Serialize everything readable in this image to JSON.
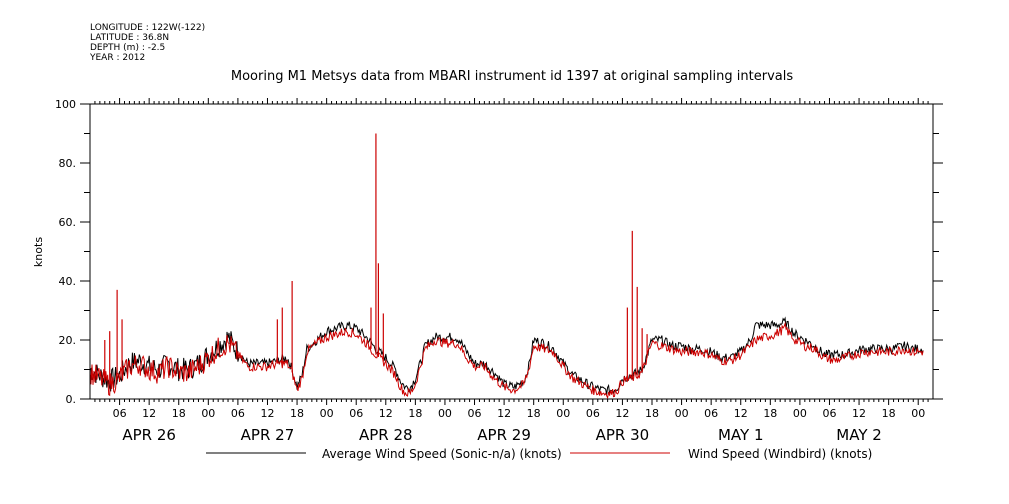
{
  "header": {
    "longitude": "LONGITUDE : 122W(-122)",
    "latitude": "LATITUDE : 36.8N",
    "depth": "DEPTH (m) : -2.5",
    "year": "YEAR : 2012"
  },
  "chart_data": {
    "type": "line",
    "title": "Mooring M1 Metsys data from MBARI instrument id 1397 at original sampling intervals",
    "ylabel": "knots",
    "xlabel": "",
    "ylim": [
      0,
      100
    ],
    "yticks": [
      0,
      20,
      40,
      60,
      80,
      100
    ],
    "ytick_labels": [
      "0.",
      "20.",
      "40.",
      "60.",
      "80.",
      "100"
    ],
    "xlim_hours": [
      0,
      171
    ],
    "hour_ticks": [
      {
        "h": 6,
        "label": "06"
      },
      {
        "h": 12,
        "label": "12"
      },
      {
        "h": 18,
        "label": "18"
      },
      {
        "h": 24,
        "label": "00"
      },
      {
        "h": 30,
        "label": "06"
      },
      {
        "h": 36,
        "label": "12"
      },
      {
        "h": 42,
        "label": "18"
      },
      {
        "h": 48,
        "label": "00"
      },
      {
        "h": 54,
        "label": "06"
      },
      {
        "h": 60,
        "label": "12"
      },
      {
        "h": 66,
        "label": "18"
      },
      {
        "h": 72,
        "label": "00"
      },
      {
        "h": 78,
        "label": "06"
      },
      {
        "h": 84,
        "label": "12"
      },
      {
        "h": 90,
        "label": "18"
      },
      {
        "h": 96,
        "label": "00"
      },
      {
        "h": 102,
        "label": "06"
      },
      {
        "h": 108,
        "label": "12"
      },
      {
        "h": 114,
        "label": "18"
      },
      {
        "h": 120,
        "label": "00"
      },
      {
        "h": 126,
        "label": "06"
      },
      {
        "h": 132,
        "label": "12"
      },
      {
        "h": 138,
        "label": "18"
      },
      {
        "h": 144,
        "label": "00"
      },
      {
        "h": 150,
        "label": "06"
      },
      {
        "h": 156,
        "label": "12"
      },
      {
        "h": 162,
        "label": "18"
      },
      {
        "h": 168,
        "label": "00"
      }
    ],
    "day_labels": [
      {
        "h": 12,
        "label": "APR 26"
      },
      {
        "h": 36,
        "label": "APR 27"
      },
      {
        "h": 60,
        "label": "APR 28"
      },
      {
        "h": 84,
        "label": "APR 29"
      },
      {
        "h": 108,
        "label": "APR 30"
      },
      {
        "h": 132,
        "label": "MAY  1"
      },
      {
        "h": 156,
        "label": "MAY  2"
      }
    ],
    "series": [
      {
        "name": "Average Wind Speed (Sonic-n/a) (knots)",
        "color": "#000000",
        "points": [
          [
            0,
            10
          ],
          [
            2,
            8
          ],
          [
            4,
            6
          ],
          [
            6,
            8
          ],
          [
            8,
            12
          ],
          [
            10,
            13
          ],
          [
            12,
            11
          ],
          [
            14,
            10
          ],
          [
            16,
            12
          ],
          [
            18,
            10
          ],
          [
            20,
            10
          ],
          [
            22,
            12
          ],
          [
            24,
            15
          ],
          [
            26,
            18
          ],
          [
            28,
            21
          ],
          [
            30,
            16
          ],
          [
            32,
            12
          ],
          [
            34,
            12
          ],
          [
            36,
            12
          ],
          [
            38,
            13
          ],
          [
            40,
            14
          ],
          [
            41,
            10
          ],
          [
            42,
            4
          ],
          [
            43,
            8
          ],
          [
            44,
            17
          ],
          [
            46,
            20
          ],
          [
            48,
            23
          ],
          [
            50,
            24
          ],
          [
            52,
            25
          ],
          [
            54,
            24
          ],
          [
            56,
            21
          ],
          [
            58,
            17
          ],
          [
            60,
            14
          ],
          [
            62,
            10
          ],
          [
            63,
            6
          ],
          [
            64,
            4
          ],
          [
            65,
            4
          ],
          [
            66,
            7
          ],
          [
            67,
            12
          ],
          [
            68,
            18
          ],
          [
            70,
            21
          ],
          [
            72,
            21
          ],
          [
            74,
            21
          ],
          [
            75,
            20
          ],
          [
            76,
            17
          ],
          [
            78,
            12
          ],
          [
            80,
            12
          ],
          [
            82,
            9
          ],
          [
            84,
            5
          ],
          [
            86,
            4
          ],
          [
            88,
            6
          ],
          [
            89,
            11
          ],
          [
            90,
            20
          ],
          [
            92,
            19
          ],
          [
            94,
            17
          ],
          [
            96,
            12
          ],
          [
            98,
            8
          ],
          [
            100,
            6
          ],
          [
            102,
            4
          ],
          [
            104,
            3
          ],
          [
            106,
            3
          ],
          [
            107,
            4
          ],
          [
            108,
            7
          ],
          [
            110,
            8
          ],
          [
            112,
            10
          ],
          [
            114,
            20
          ],
          [
            116,
            20
          ],
          [
            118,
            18
          ],
          [
            120,
            18
          ],
          [
            122,
            17
          ],
          [
            124,
            17
          ],
          [
            126,
            16
          ],
          [
            128,
            14
          ],
          [
            130,
            14
          ],
          [
            132,
            16
          ],
          [
            134,
            20
          ],
          [
            135,
            25
          ],
          [
            139,
            25
          ],
          [
            141,
            26
          ],
          [
            143,
            22
          ],
          [
            145,
            20
          ],
          [
            147,
            18
          ],
          [
            149,
            15
          ],
          [
            151,
            15
          ],
          [
            153,
            15
          ],
          [
            155,
            16
          ],
          [
            157,
            17
          ],
          [
            159,
            17
          ],
          [
            161,
            17
          ],
          [
            163,
            17
          ],
          [
            165,
            18
          ],
          [
            167,
            17
          ],
          [
            169,
            17
          ]
        ]
      },
      {
        "name": "Wind Speed (Windbird) (knots)",
        "color": "#cc0000",
        "points": [
          [
            0,
            9
          ],
          [
            2,
            7
          ],
          [
            4,
            5
          ],
          [
            6,
            7
          ],
          [
            8,
            11
          ],
          [
            10,
            12
          ],
          [
            12,
            10
          ],
          [
            14,
            9
          ],
          [
            16,
            11
          ],
          [
            18,
            9
          ],
          [
            20,
            9
          ],
          [
            22,
            11
          ],
          [
            24,
            14
          ],
          [
            26,
            17
          ],
          [
            28,
            19
          ],
          [
            30,
            15
          ],
          [
            32,
            11
          ],
          [
            34,
            11
          ],
          [
            36,
            11
          ],
          [
            38,
            12
          ],
          [
            40,
            12
          ],
          [
            41,
            9
          ],
          [
            42,
            3
          ],
          [
            43,
            7
          ],
          [
            44,
            16
          ],
          [
            46,
            19
          ],
          [
            48,
            21
          ],
          [
            50,
            22
          ],
          [
            52,
            23
          ],
          [
            54,
            22
          ],
          [
            56,
            19
          ],
          [
            58,
            15
          ],
          [
            60,
            12
          ],
          [
            62,
            8
          ],
          [
            63,
            4
          ],
          [
            64,
            2
          ],
          [
            65,
            2
          ],
          [
            66,
            5
          ],
          [
            67,
            11
          ],
          [
            68,
            17
          ],
          [
            70,
            20
          ],
          [
            72,
            19
          ],
          [
            74,
            19
          ],
          [
            75,
            18
          ],
          [
            76,
            15
          ],
          [
            78,
            11
          ],
          [
            80,
            11
          ],
          [
            82,
            7
          ],
          [
            84,
            4
          ],
          [
            86,
            3
          ],
          [
            88,
            5
          ],
          [
            89,
            10
          ],
          [
            90,
            18
          ],
          [
            92,
            17
          ],
          [
            94,
            16
          ],
          [
            96,
            11
          ],
          [
            98,
            7
          ],
          [
            100,
            5
          ],
          [
            102,
            3
          ],
          [
            104,
            2
          ],
          [
            106,
            2
          ],
          [
            107,
            3
          ],
          [
            108,
            6
          ],
          [
            110,
            7
          ],
          [
            112,
            9
          ],
          [
            114,
            19
          ],
          [
            116,
            18
          ],
          [
            118,
            17
          ],
          [
            120,
            16
          ],
          [
            122,
            16
          ],
          [
            124,
            16
          ],
          [
            126,
            15
          ],
          [
            128,
            13
          ],
          [
            130,
            13
          ],
          [
            132,
            15
          ],
          [
            134,
            18
          ],
          [
            135,
            20
          ],
          [
            139,
            22
          ],
          [
            141,
            24
          ],
          [
            143,
            20
          ],
          [
            145,
            18
          ],
          [
            147,
            17
          ],
          [
            149,
            14
          ],
          [
            151,
            13
          ],
          [
            153,
            14
          ],
          [
            155,
            15
          ],
          [
            157,
            16
          ],
          [
            159,
            16
          ],
          [
            161,
            16
          ],
          [
            163,
            16
          ],
          [
            165,
            17
          ],
          [
            167,
            16
          ],
          [
            169,
            16
          ]
        ],
        "spikes": [
          [
            3,
            20
          ],
          [
            4,
            23
          ],
          [
            5.5,
            37
          ],
          [
            6.5,
            27
          ],
          [
            38,
            27
          ],
          [
            39,
            31
          ],
          [
            41,
            40
          ],
          [
            57,
            31
          ],
          [
            58,
            90
          ],
          [
            58.5,
            46
          ],
          [
            59.5,
            29
          ],
          [
            109,
            31
          ],
          [
            110,
            57
          ],
          [
            111,
            38
          ],
          [
            112,
            24
          ],
          [
            113,
            22
          ]
        ]
      }
    ],
    "legend": {
      "placement": "bottom"
    }
  }
}
